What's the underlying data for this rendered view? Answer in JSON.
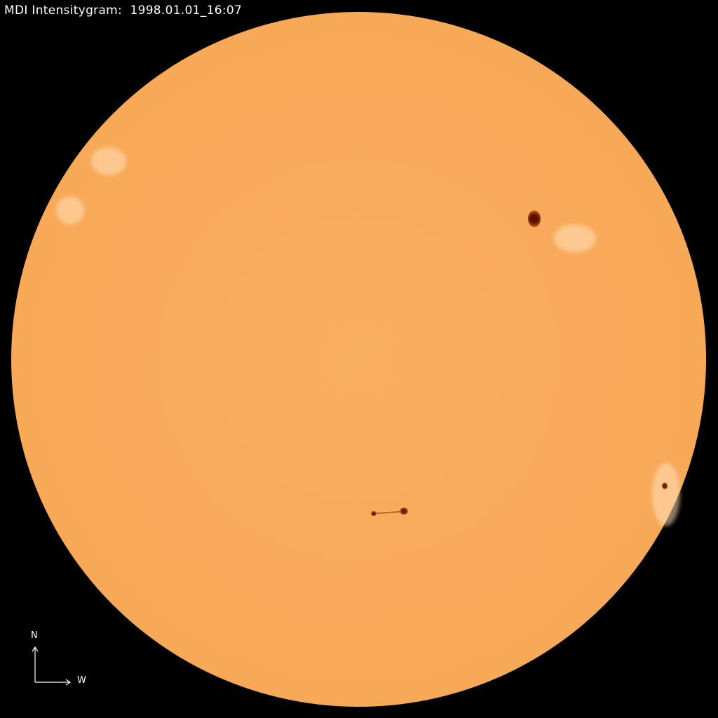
{
  "title": "MDI Intensitygram:  1998.01.01_16:07",
  "compass": {
    "north": "N",
    "west": "W"
  },
  "colors": {
    "background": "#000000",
    "disk": "#f8a958",
    "sunspot_umbra": "#5a1000",
    "sunspot_penumbra": "#b84a10"
  }
}
